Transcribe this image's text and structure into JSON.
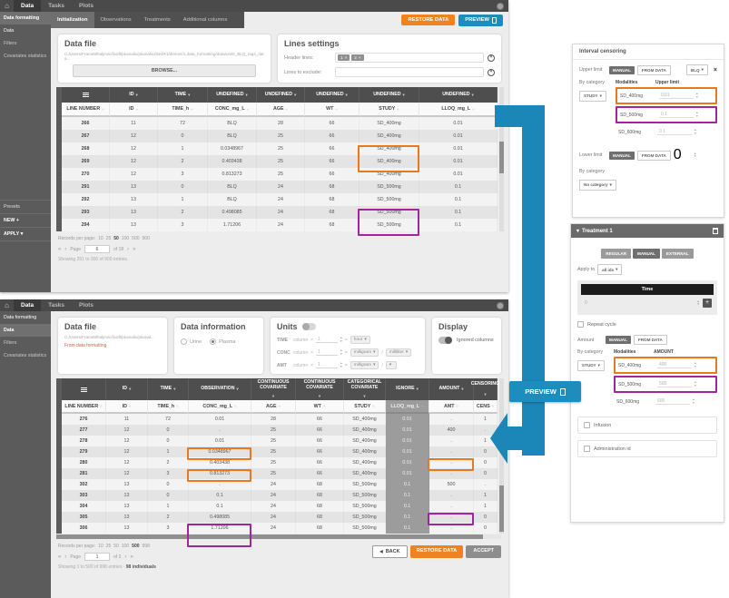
{
  "icons": {
    "home": "⌂",
    "dropdown": "▾",
    "up": "▴",
    "down": "▾",
    "filter": "≈",
    "first": "«",
    "prev": "‹",
    "next": "›",
    "last": "»",
    "back": "◀",
    "close": "×",
    "chip_remove": "×",
    "plus": "+",
    "times": "×",
    "equals": "=",
    "slash": "/"
  },
  "nav_tabs": [
    {
      "label": "Data",
      "active": true
    },
    {
      "label": "Tasks",
      "active": false
    },
    {
      "label": "Plots",
      "active": false
    }
  ],
  "arrow": {
    "preview_label": "PREVIEW"
  },
  "app1": {
    "sidebar": {
      "items": [
        {
          "label": "Data formatting",
          "active": true,
          "bright": false
        },
        {
          "label": "Data",
          "active": false,
          "bright": true
        },
        {
          "label": "Filters",
          "active": false,
          "bright": false
        },
        {
          "label": "Covariates statistics",
          "active": false,
          "bright": false
        }
      ],
      "presets": {
        "title": "Presets",
        "new_label": "NEW",
        "apply_label": "APPLY"
      }
    },
    "subtabs": [
      {
        "label": "Initialization",
        "active": true
      },
      {
        "label": "Observations",
        "active": false
      },
      {
        "label": "Treatments",
        "active": false
      },
      {
        "label": "Additional columns",
        "active": false
      }
    ],
    "restore_label": "RESTORE DATA",
    "preview_label": "PREVIEW",
    "data_file": {
      "title": "Data file",
      "path": "C:/Users/FranoMihaljevic/lixoft/pkanalix/pkanalix2024R1/demos/1.data_formatting/data/units_BLQ_tags_data...",
      "browse_label": "BROWSE..."
    },
    "lines_settings": {
      "title": "Lines settings",
      "header_label": "Header lines:",
      "header_tags": [
        "1",
        "2"
      ],
      "exclude_label": "Lines to exclude:"
    },
    "table": {
      "group_headers": [
        "",
        "ID",
        "TIME",
        "UNDEFINED",
        "UNDEFINED",
        "UNDEFINED",
        "UNDEFINED",
        "UNDEFINED"
      ],
      "columns": [
        "LINE NUMBER",
        "ID",
        "TIME_h",
        "CONC_mg_L",
        "AGE",
        "WT",
        "STUDY",
        "LLOQ_mg_L"
      ],
      "rows": [
        [
          "266",
          "11",
          "72",
          "BLQ",
          "28",
          "66",
          "SD_400mg",
          "0.01"
        ],
        [
          "267",
          "12",
          "0",
          "BLQ",
          "25",
          "66",
          "SD_400mg",
          "0.01"
        ],
        [
          "268",
          "12",
          "1",
          "0.0348967",
          "25",
          "66",
          "SD_400mg",
          "0.01"
        ],
        [
          "269",
          "12",
          "2",
          "0.403438",
          "25",
          "66",
          "SD_400mg",
          "0.01"
        ],
        [
          "270",
          "12",
          "3",
          "0.813273",
          "25",
          "66",
          "SD_400mg",
          "0.01"
        ],
        [
          "291",
          "13",
          "0",
          "BLQ",
          "24",
          "68",
          "SD_500mg",
          "0.1"
        ],
        [
          "292",
          "13",
          "1",
          "BLQ",
          "24",
          "68",
          "SD_500mg",
          "0.1"
        ],
        [
          "293",
          "13",
          "2",
          "0.498085",
          "24",
          "68",
          "SD_500mg",
          "0.1"
        ],
        [
          "294",
          "13",
          "3",
          "1.71206",
          "24",
          "68",
          "SD_500mg",
          "0.1"
        ]
      ],
      "highlights": [
        {
          "col": 6,
          "row_start": 0,
          "row_end": 1,
          "color": "#e8791d"
        },
        {
          "col": 6,
          "row_start": 5,
          "row_end": 6,
          "color": "#a1259f"
        }
      ]
    },
    "pagination": {
      "records_label": "Records per page:",
      "options": [
        "10",
        "25",
        "50",
        "100",
        "500",
        "900"
      ],
      "selected": "50",
      "page_label": "Page",
      "page": "6",
      "of_label": "of 18",
      "showing": "Showing 251 to 300 of 900 entries."
    }
  },
  "app2": {
    "sidebar": {
      "items": [
        {
          "label": "Data formatting",
          "active": false,
          "bright": true
        },
        {
          "label": "Data",
          "active": true,
          "bright": false
        },
        {
          "label": "Filters",
          "active": false,
          "bright": false
        },
        {
          "label": "Covariates statistics",
          "active": false,
          "bright": false
        }
      ]
    },
    "data_file": {
      "title": "Data file",
      "path": "C:/Users/FranoMihaljevic/lixoft/pkanalix/pkanal...",
      "note": "From data formatting"
    },
    "data_information": {
      "title": "Data information",
      "options": [
        {
          "label": "Urine",
          "selected": false
        },
        {
          "label": "Plasma",
          "selected": true
        }
      ]
    },
    "units": {
      "title": "Units",
      "column_word": "column",
      "rows": [
        {
          "label": "TIME",
          "factor": "1",
          "units": [
            "hour"
          ]
        },
        {
          "label": "CONC",
          "factor": "1",
          "units": [
            "milligram",
            "milliliter"
          ]
        },
        {
          "label": "AMT",
          "factor": "1",
          "units": [
            "milligram",
            ""
          ]
        }
      ]
    },
    "display": {
      "title": "Display",
      "toggle_label": "Ignored columns"
    },
    "table": {
      "group_headers": [
        "",
        "ID",
        "TIME",
        "OBSERVATION",
        "CONTINUOUS COVARIATE",
        "CONTINUOUS COVARIATE",
        "CATEGORICAL COVARIATE",
        "IGNORE",
        "AMOUNT",
        "CENSORING"
      ],
      "columns": [
        "LINE NUMBER",
        "ID",
        "TIME_h",
        "CONC_mg_L",
        "AGE",
        "WT",
        "STUDY",
        "LLOQ_mg_L",
        "AMT",
        "CENS"
      ],
      "ignored_col": 7,
      "rows": [
        [
          "276",
          "11",
          "72",
          "0.01",
          "28",
          "66",
          "SD_400mg",
          "0.01",
          ".",
          "1"
        ],
        [
          "277",
          "12",
          "0",
          ".",
          "25",
          "66",
          "SD_400mg",
          "0.01",
          "400",
          "."
        ],
        [
          "278",
          "12",
          "0",
          "0.01",
          "25",
          "66",
          "SD_400mg",
          "0.01",
          ".",
          "1"
        ],
        [
          "279",
          "12",
          "1",
          "0.0348967",
          "25",
          "66",
          "SD_400mg",
          "0.01",
          ".",
          "0"
        ],
        [
          "280",
          "12",
          "2",
          "0.403438",
          "25",
          "66",
          "SD_400mg",
          "0.01",
          ".",
          "0"
        ],
        [
          "281",
          "12",
          "3",
          "0.813273",
          "25",
          "66",
          "SD_400mg",
          "0.01",
          ".",
          "0"
        ],
        [
          "302",
          "13",
          "0",
          ".",
          "24",
          "68",
          "SD_500mg",
          "0.1",
          "500",
          "."
        ],
        [
          "303",
          "13",
          "0",
          "0.1",
          "24",
          "68",
          "SD_500mg",
          "0.1",
          ".",
          "1"
        ],
        [
          "304",
          "13",
          "1",
          "0.1",
          "24",
          "68",
          "SD_500mg",
          "0.1",
          ".",
          "1"
        ],
        [
          "305",
          "13",
          "2",
          "0.498085",
          "24",
          "68",
          "SD_500mg",
          "0.1",
          ".",
          "0"
        ],
        [
          "306",
          "13",
          "3",
          "1.71206",
          "24",
          "68",
          "SD_500mg",
          "0.1",
          ".",
          "0"
        ]
      ],
      "highlights": [
        {
          "col": 3,
          "row_start": 0,
          "row_end": 0,
          "color": "#e8791d"
        },
        {
          "col": 8,
          "row_start": 1,
          "row_end": 1,
          "color": "#e8791d"
        },
        {
          "col": 3,
          "row_start": 2,
          "row_end": 2,
          "color": "#e8791d"
        },
        {
          "col": 8,
          "row_start": 6,
          "row_end": 6,
          "color": "#a1259f"
        },
        {
          "col": 3,
          "row_start": 7,
          "row_end": 8,
          "color": "#a1259f"
        }
      ]
    },
    "pagination": {
      "records_label": "Records per page:",
      "options": [
        "10",
        "25",
        "50",
        "100",
        "500",
        "998"
      ],
      "selected": "500",
      "page_label": "Page",
      "page": "1",
      "of_label": "of 2",
      "showing": "Showing 1 to 500 of 998 entries - ",
      "individuals": "98 individuals"
    },
    "actions": {
      "back": "BACK",
      "restore": "RESTORE DATA",
      "accept": "ACCEPT"
    }
  },
  "censoring": {
    "title": "Interval censoring",
    "upper_label": "Upper limit",
    "manual": "MANUAL",
    "from_data": "FROM DATA",
    "blq": "BLQ",
    "by_category": "By category",
    "study": "STUDY",
    "modalities_header": "Modalities",
    "upper_header": "Upper limit",
    "rows": [
      {
        "name": "SD_400mg",
        "value": "0.01",
        "highlight": "orange"
      },
      {
        "name": "SD_500mg",
        "value": "0.1",
        "highlight": "purple"
      },
      {
        "name": "SD_600mg",
        "value": "0.1",
        "highlight": ""
      }
    ],
    "lower_label": "Lower limit",
    "lower_value": "0",
    "no_category": "No category"
  },
  "treatment": {
    "title": "Treatment 1",
    "modes": [
      {
        "label": "REGULAR",
        "active": false
      },
      {
        "label": "MANUAL",
        "active": true
      },
      {
        "label": "EXTERNAL",
        "active": false
      }
    ],
    "apply_label": "Apply to",
    "apply_value": "all ids",
    "time_header": "Time",
    "time_value": "0",
    "repeat_label": "Repeat cycle",
    "amount_label": "Amount",
    "manual": "MANUAL",
    "from_data": "FROM DATA",
    "by_category": "By category",
    "study": "STUDY",
    "modalities_header": "Modalities",
    "amount_header": "AMOUNT",
    "rows": [
      {
        "name": "SD_400mg",
        "value": "400",
        "highlight": "orange"
      },
      {
        "name": "SD_500mg",
        "value": "500",
        "highlight": "purple"
      },
      {
        "name": "SD_600mg",
        "value": "600",
        "highlight": ""
      }
    ],
    "infusion_label": "Infusion",
    "admin_label": "Administration id"
  }
}
